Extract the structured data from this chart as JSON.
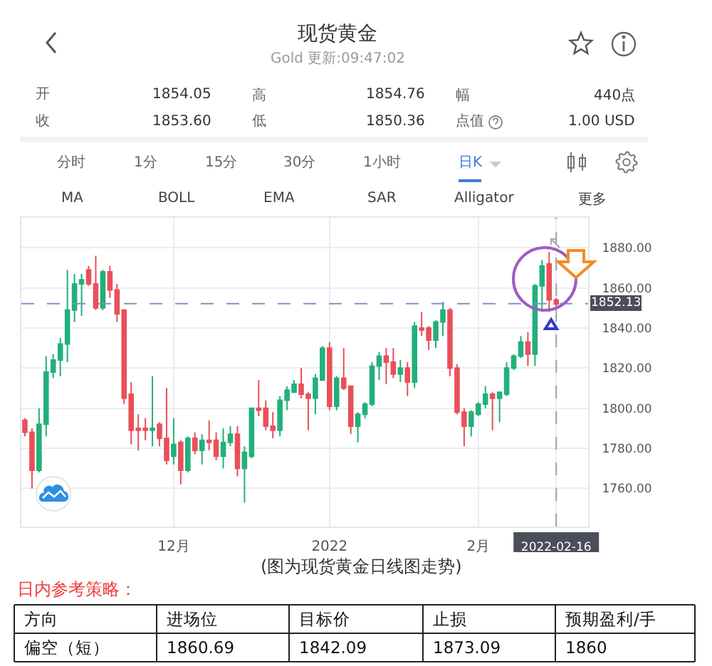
{
  "chart_data": [
    {
      "type": "other",
      "title": "现货黄金",
      "subtitle": "Gold 更新:09:47:02",
      "annotations": [
        "开",
        "1854.05",
        "高",
        "1854.76",
        "幅",
        "440点",
        "收",
        "1853.60",
        "低",
        "1850.36",
        "点值",
        "1.00 USD",
        "分时",
        "1分",
        "15分",
        "30分",
        "1小时",
        "日K",
        "MA",
        "BOLL",
        "EMA",
        "SAR",
        "Alligator",
        "更多"
      ]
    },
    {
      "type": "candlestick",
      "categories": [
        null,
        null,
        null,
        null,
        null,
        null,
        null,
        null,
        null,
        null,
        null,
        null,
        null,
        null,
        null,
        null,
        null,
        null,
        null,
        null,
        null,
        "12月",
        null,
        null,
        null,
        null,
        null,
        null,
        null,
        null,
        null,
        null,
        null,
        null,
        null,
        null,
        null,
        null,
        null,
        null,
        null,
        null,
        null,
        "2022",
        null,
        null,
        null,
        null,
        null,
        null,
        null,
        null,
        null,
        null,
        null,
        null,
        null,
        null,
        null,
        null,
        null,
        null,
        null,
        null,
        "2月",
        null,
        null,
        null,
        null,
        null,
        null,
        null,
        null,
        null,
        null,
        "2022-02-16"
      ],
      "ohlc": [
        [
          1794,
          1795,
          1786,
          1788
        ],
        [
          1788,
          1790,
          1760,
          1769
        ],
        [
          1769,
          1800,
          1768,
          1792
        ],
        [
          1792,
          1826,
          1786,
          1818
        ],
        [
          1818,
          1827,
          1815,
          1824
        ],
        [
          1824,
          1835,
          1816,
          1832
        ],
        [
          1832,
          1869,
          1823,
          1849
        ],
        [
          1849,
          1867,
          1843,
          1862
        ],
        [
          1862,
          1867,
          1846,
          1864
        ],
        [
          1869,
          1871,
          1861,
          1862
        ],
        [
          1862,
          1876,
          1849,
          1850
        ],
        [
          1850,
          1869,
          1849,
          1868
        ],
        [
          1868,
          1871,
          1855,
          1859
        ],
        [
          1859,
          1862,
          1843,
          1847
        ],
        [
          1849,
          1849,
          1802,
          1805
        ],
        [
          1807,
          1813,
          1782,
          1789
        ],
        [
          1790,
          1797,
          1779,
          1789
        ],
        [
          1790,
          1795,
          1784,
          1789
        ],
        [
          1789,
          1816,
          1781,
          1790
        ],
        [
          1792,
          1793,
          1781,
          1785
        ],
        [
          1785,
          1810,
          1772,
          1774
        ],
        [
          1776,
          1795,
          1772,
          1782
        ],
        [
          1783,
          1784,
          1762,
          1769
        ],
        [
          1769,
          1786,
          1768,
          1785
        ],
        [
          1785,
          1788,
          1777,
          1779
        ],
        [
          1779,
          1787,
          1772,
          1784
        ],
        [
          1784,
          1794,
          1779,
          1783
        ],
        [
          1784,
          1788,
          1774,
          1776
        ],
        [
          1776,
          1790,
          1770,
          1783
        ],
        [
          1783,
          1791,
          1781,
          1787
        ],
        [
          1787,
          1791,
          1766,
          1770
        ],
        [
          1770,
          1781,
          1753,
          1778
        ],
        [
          1776,
          1800,
          1775,
          1800
        ],
        [
          1800,
          1814,
          1796,
          1799
        ],
        [
          1800,
          1804,
          1789,
          1791
        ],
        [
          1791,
          1798,
          1785,
          1789
        ],
        [
          1789,
          1806,
          1786,
          1804
        ],
        [
          1804,
          1811,
          1799,
          1809
        ],
        [
          1808,
          1814,
          1808,
          1812
        ],
        [
          1812,
          1820,
          1805,
          1807
        ],
        [
          1807,
          1808,
          1789,
          1805
        ],
        [
          1805,
          1817,
          1797,
          1815
        ],
        [
          1814,
          1831,
          1814,
          1830
        ],
        [
          1830,
          1833,
          1799,
          1801
        ],
        [
          1801,
          1816,
          1799,
          1815
        ],
        [
          1815,
          1830,
          1809,
          1810
        ],
        [
          1811,
          1811,
          1787,
          1791
        ],
        [
          1791,
          1798,
          1783,
          1797
        ],
        [
          1797,
          1803,
          1795,
          1802
        ],
        [
          1802,
          1823,
          1801,
          1821
        ],
        [
          1821,
          1828,
          1814,
          1826
        ],
        [
          1826,
          1830,
          1812,
          1823
        ],
        [
          1823,
          1830,
          1815,
          1817
        ],
        [
          1817,
          1824,
          1813,
          1820
        ],
        [
          1820,
          1823,
          1806,
          1813
        ],
        [
          1813,
          1843,
          1810,
          1841
        ],
        [
          1840,
          1848,
          1836,
          1839
        ],
        [
          1840,
          1841,
          1829,
          1834
        ],
        [
          1834,
          1844,
          1830,
          1843
        ],
        [
          1843,
          1853,
          1836,
          1849
        ],
        [
          1849,
          1850,
          1816,
          1820
        ],
        [
          1820,
          1822,
          1797,
          1798
        ],
        [
          1798,
          1800,
          1781,
          1791
        ],
        [
          1791,
          1799,
          1786,
          1798
        ],
        [
          1797,
          1803,
          1796,
          1802
        ],
        [
          1802,
          1811,
          1800,
          1807
        ],
        [
          1807,
          1808,
          1789,
          1805
        ],
        [
          1805,
          1808,
          1793,
          1808
        ],
        [
          1807,
          1823,
          1806,
          1820
        ],
        [
          1820,
          1827,
          1819,
          1826
        ],
        [
          1826,
          1836,
          1825,
          1833
        ],
        [
          1833,
          1838,
          1821,
          1827
        ],
        [
          1827,
          1862,
          1821,
          1861
        ],
        [
          1861,
          1874,
          1848,
          1871
        ],
        [
          1872,
          1878,
          1848,
          1854
        ],
        [
          1854,
          1855,
          1850,
          1852
        ]
      ],
      "ylim": [
        1741,
        1895
      ],
      "yticks": [
        {
          "value": 1760,
          "label": "1760.00"
        },
        {
          "value": 1780,
          "label": "1780.00"
        },
        {
          "value": 1800,
          "label": "1800.00"
        },
        {
          "value": 1820,
          "label": "1820.00"
        },
        {
          "value": 1840,
          "label": "1840.00"
        },
        {
          "value": 1860,
          "label": "1860.00"
        },
        {
          "value": 1880,
          "label": "1880.00"
        }
      ],
      "grid": true,
      "ref_lines": [
        {
          "axis": "y",
          "value": 1852.13,
          "label": "1852.13",
          "color": "#7f93c6",
          "line_style": "dashed"
        },
        {
          "axis": "x",
          "value": "2022-02-16",
          "color": "#9aa3b0",
          "line_style": "dashed"
        }
      ],
      "annotations": [
        "(图为现货黄金日线图走势)"
      ]
    },
    {
      "type": "other",
      "title": "日内参考策略：",
      "annotations": [
        "方向",
        "进场位",
        "目标价",
        "止损",
        "预期盈利/手",
        "偏空（短）",
        "1860.69",
        "1842.09",
        "1873.09",
        "1860"
      ]
    }
  ]
}
